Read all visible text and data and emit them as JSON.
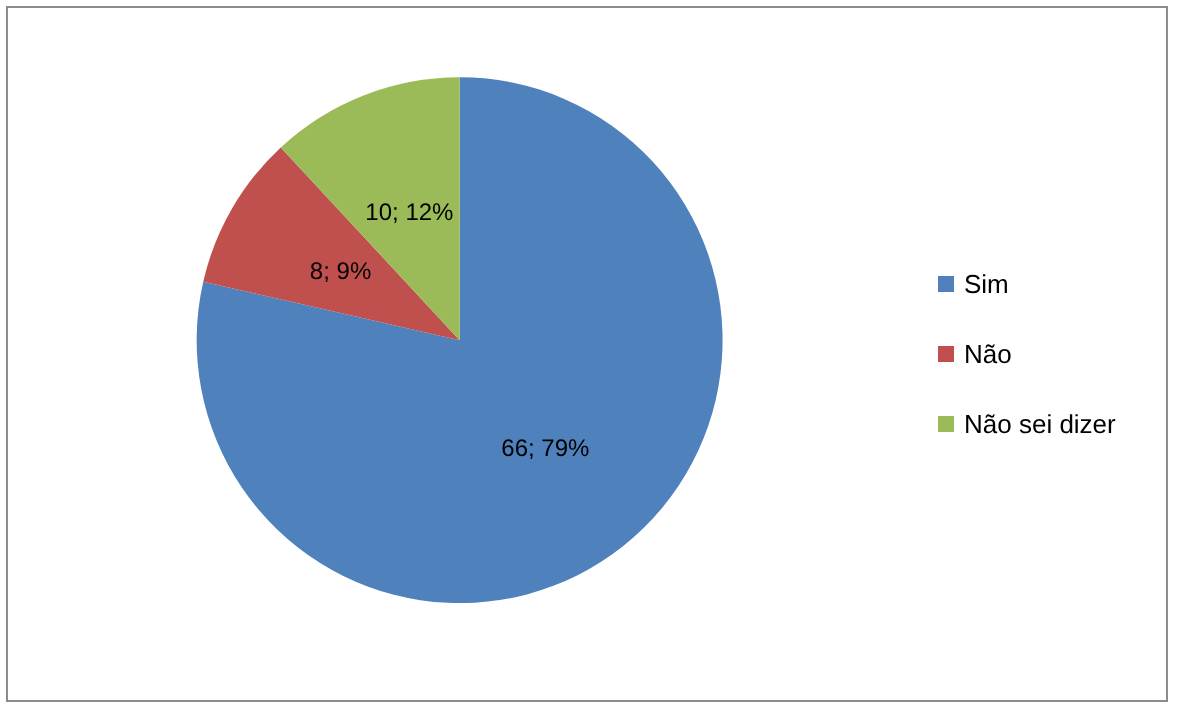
{
  "chart_data": {
    "type": "pie",
    "categories": [
      "Sim",
      "Não",
      "Não sei dizer"
    ],
    "values": [
      66,
      8,
      10
    ],
    "colors": [
      "#4f81bd",
      "#c0504d",
      "#9bbb59"
    ],
    "value_labels": [
      "66; 79%",
      "8; 9%",
      "10; 12%"
    ],
    "legend": "right"
  }
}
